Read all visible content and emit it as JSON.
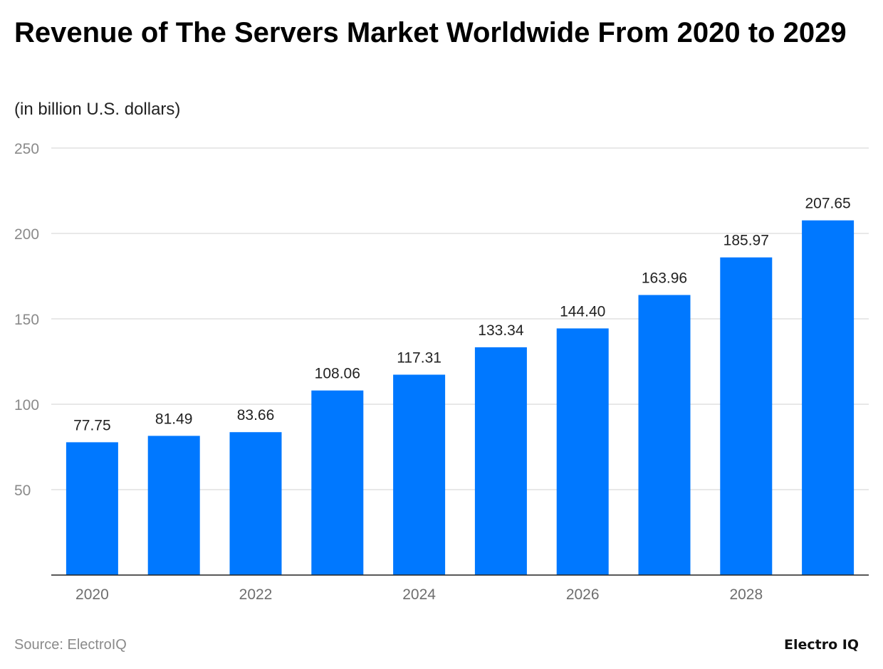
{
  "chart_data": {
    "type": "bar",
    "title": "Revenue of The Servers Market Worldwide From 2020 to 2029",
    "subtitle": "(in billion U.S. dollars)",
    "categories": [
      "2020",
      "2021",
      "2022",
      "2023",
      "2024",
      "2025",
      "2026",
      "2027",
      "2028",
      "2029"
    ],
    "values": [
      77.75,
      81.49,
      83.66,
      108.06,
      117.31,
      133.34,
      144.4,
      163.96,
      185.97,
      207.65
    ],
    "data_labels": [
      "77.75",
      "81.49",
      "83.66",
      "108.06",
      "117.31",
      "133.34",
      "144.40",
      "163.96",
      "185.97",
      "207.65"
    ],
    "x_tick_labels": [
      "2020",
      "2022",
      "2024",
      "2026",
      "2028"
    ],
    "y_ticks": [
      50,
      100,
      150,
      200,
      250
    ],
    "ylim": [
      0,
      250
    ],
    "xlabel": "",
    "ylabel": "",
    "grid": true,
    "bar_color": "#0078ff"
  },
  "footer": {
    "source": "Source: ElectroIQ",
    "logo": "Electro IQ"
  }
}
